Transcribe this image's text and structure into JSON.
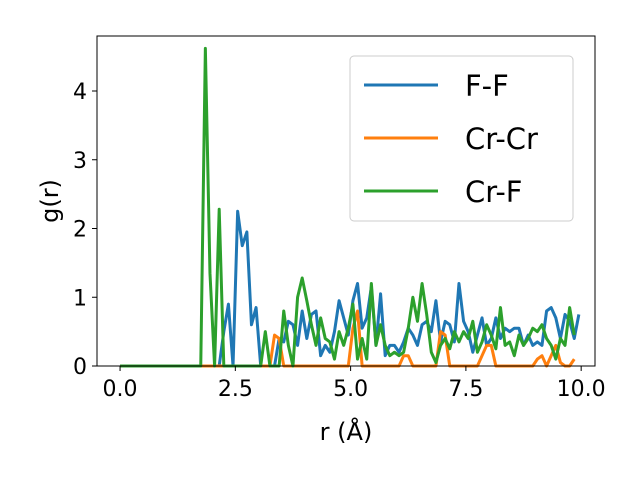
{
  "chart_data": {
    "type": "line",
    "xlabel": "r (Å)",
    "ylabel": "g(r)",
    "xlim": [
      -0.5,
      10.3
    ],
    "ylim": [
      0,
      4.8
    ],
    "x_ticks": [
      0.0,
      2.5,
      5.0,
      7.5,
      10.0
    ],
    "x_tick_labels": [
      "0.0",
      "2.5",
      "5.0",
      "7.5",
      "10.0"
    ],
    "y_ticks": [
      0,
      1,
      2,
      3,
      4
    ],
    "y_tick_labels": [
      "0",
      "1",
      "2",
      "3",
      "4"
    ],
    "grid": false,
    "legend_position": "top-right",
    "series": [
      {
        "name": "F-F",
        "color": "#1f77b4",
        "points": [
          [
            0,
            0
          ],
          [
            2.15,
            0
          ],
          [
            2.25,
            0.5
          ],
          [
            2.35,
            0.9
          ],
          [
            2.45,
            0
          ],
          [
            2.55,
            2.25
          ],
          [
            2.65,
            1.75
          ],
          [
            2.75,
            1.95
          ],
          [
            2.85,
            0.6
          ],
          [
            2.95,
            0.85
          ],
          [
            3.05,
            0
          ],
          [
            3.35,
            0
          ],
          [
            3.45,
            0.4
          ],
          [
            3.55,
            0.35
          ],
          [
            3.65,
            0.65
          ],
          [
            3.75,
            0.6
          ],
          [
            3.85,
            0.3
          ],
          [
            3.95,
            0.8
          ],
          [
            4.05,
            0.4
          ],
          [
            4.15,
            0.75
          ],
          [
            4.25,
            0.8
          ],
          [
            4.35,
            0.15
          ],
          [
            4.45,
            0.3
          ],
          [
            4.55,
            0.2
          ],
          [
            4.65,
            0.5
          ],
          [
            4.75,
            0.95
          ],
          [
            4.85,
            0.7
          ],
          [
            4.95,
            0.45
          ],
          [
            5.05,
            0.95
          ],
          [
            5.15,
            1.2
          ],
          [
            5.25,
            0.55
          ],
          [
            5.35,
            0.7
          ],
          [
            5.45,
            1.15
          ],
          [
            5.55,
            0.3
          ],
          [
            5.65,
            1.05
          ],
          [
            5.75,
            0.15
          ],
          [
            5.85,
            0.3
          ],
          [
            5.95,
            0.3
          ],
          [
            6.05,
            0.2
          ],
          [
            6.15,
            0.35
          ],
          [
            6.25,
            0.55
          ],
          [
            6.35,
            0.45
          ],
          [
            6.45,
            0.3
          ],
          [
            6.55,
            0.6
          ],
          [
            6.65,
            0.65
          ],
          [
            6.75,
            0.5
          ],
          [
            6.85,
            0.95
          ],
          [
            6.95,
            0.35
          ],
          [
            7.05,
            0.65
          ],
          [
            7.15,
            0.6
          ],
          [
            7.25,
            0.35
          ],
          [
            7.35,
            1.2
          ],
          [
            7.45,
            0.65
          ],
          [
            7.55,
            0.5
          ],
          [
            7.65,
            0.2
          ],
          [
            7.75,
            0.45
          ],
          [
            7.85,
            0.7
          ],
          [
            7.95,
            0.3
          ],
          [
            8.05,
            0.4
          ],
          [
            8.15,
            0.7
          ],
          [
            8.25,
            0.4
          ],
          [
            8.35,
            0.55
          ],
          [
            8.45,
            0.5
          ],
          [
            8.55,
            0.55
          ],
          [
            8.65,
            0.55
          ],
          [
            8.75,
            0.3
          ],
          [
            8.85,
            0.45
          ],
          [
            8.95,
            0.3
          ],
          [
            9.05,
            0.35
          ],
          [
            9.15,
            0.3
          ],
          [
            9.25,
            0.8
          ],
          [
            9.35,
            0.85
          ],
          [
            9.45,
            0.7
          ],
          [
            9.55,
            0.4
          ],
          [
            9.65,
            0.75
          ],
          [
            9.75,
            0.65
          ],
          [
            9.85,
            0.4
          ],
          [
            9.95,
            0.75
          ]
        ]
      },
      {
        "name": "Cr-Cr",
        "color": "#ff7f0e",
        "points": [
          [
            0,
            0
          ],
          [
            3.25,
            0
          ],
          [
            3.35,
            0.45
          ],
          [
            3.45,
            0.4
          ],
          [
            3.55,
            0
          ],
          [
            4.95,
            0
          ],
          [
            5.05,
            0.55
          ],
          [
            5.15,
            0.8
          ],
          [
            5.25,
            0
          ],
          [
            6.05,
            0
          ],
          [
            6.15,
            0.15
          ],
          [
            6.25,
            0.15
          ],
          [
            6.35,
            0
          ],
          [
            6.85,
            0
          ],
          [
            6.95,
            0.5
          ],
          [
            7.05,
            0.45
          ],
          [
            7.15,
            0
          ],
          [
            7.75,
            0
          ],
          [
            7.85,
            0.15
          ],
          [
            7.95,
            0.3
          ],
          [
            8.05,
            0.3
          ],
          [
            8.15,
            0
          ],
          [
            8.95,
            0
          ],
          [
            9.05,
            0.1
          ],
          [
            9.15,
            0.15
          ],
          [
            9.25,
            0
          ],
          [
            9.45,
            0.3
          ],
          [
            9.55,
            0.05
          ],
          [
            9.65,
            0
          ],
          [
            9.75,
            0
          ],
          [
            9.85,
            0.1
          ]
        ]
      },
      {
        "name": "Cr-F",
        "color": "#2ca02c",
        "points": [
          [
            0,
            0
          ],
          [
            1.75,
            0
          ],
          [
            1.85,
            4.62
          ],
          [
            1.95,
            1.35
          ],
          [
            2.05,
            0
          ],
          [
            2.15,
            2.28
          ],
          [
            2.25,
            0
          ],
          [
            2.35,
            0
          ],
          [
            3.05,
            0
          ],
          [
            3.15,
            0.5
          ],
          [
            3.25,
            0
          ],
          [
            3.45,
            0
          ],
          [
            3.55,
            0.8
          ],
          [
            3.65,
            0.3
          ],
          [
            3.75,
            0
          ],
          [
            3.85,
            1.0
          ],
          [
            3.95,
            1.28
          ],
          [
            4.05,
            0.95
          ],
          [
            4.15,
            0.6
          ],
          [
            4.25,
            0.3
          ],
          [
            4.35,
            0.7
          ],
          [
            4.45,
            0.4
          ],
          [
            4.55,
            0.35
          ],
          [
            4.65,
            0.1
          ],
          [
            4.75,
            0.5
          ],
          [
            4.85,
            0.3
          ],
          [
            4.95,
            0.55
          ],
          [
            5.05,
            0.9
          ],
          [
            5.15,
            0.1
          ],
          [
            5.25,
            0.4
          ],
          [
            5.35,
            0.1
          ],
          [
            5.45,
            1.2
          ],
          [
            5.55,
            0.3
          ],
          [
            5.65,
            0.6
          ],
          [
            5.75,
            0.3
          ],
          [
            5.85,
            0.15
          ],
          [
            5.95,
            0.2
          ],
          [
            6.05,
            0.15
          ],
          [
            6.15,
            0.2
          ],
          [
            6.25,
            0.55
          ],
          [
            6.35,
            1.0
          ],
          [
            6.45,
            0.65
          ],
          [
            6.55,
            1.2
          ],
          [
            6.65,
            0.75
          ],
          [
            6.75,
            0.2
          ],
          [
            6.85,
            0.05
          ],
          [
            6.95,
            0.3
          ],
          [
            7.05,
            0.4
          ],
          [
            7.15,
            0.25
          ],
          [
            7.25,
            0.5
          ],
          [
            7.35,
            0.35
          ],
          [
            7.45,
            0.5
          ],
          [
            7.55,
            0.4
          ],
          [
            7.65,
            0.65
          ],
          [
            7.75,
            0.2
          ],
          [
            7.85,
            0.35
          ],
          [
            7.95,
            0.6
          ],
          [
            8.05,
            0.45
          ],
          [
            8.15,
            0.25
          ],
          [
            8.25,
            0.85
          ],
          [
            8.35,
            0.3
          ],
          [
            8.45,
            0.35
          ],
          [
            8.55,
            0.15
          ],
          [
            8.65,
            0.45
          ],
          [
            8.75,
            0.3
          ],
          [
            8.85,
            0.4
          ],
          [
            8.95,
            0.55
          ],
          [
            9.05,
            0.5
          ],
          [
            9.15,
            0.6
          ],
          [
            9.25,
            0.4
          ],
          [
            9.35,
            0.3
          ],
          [
            9.45,
            0.1
          ],
          [
            9.55,
            0.4
          ],
          [
            9.65,
            0.3
          ],
          [
            9.75,
            0.85
          ],
          [
            9.85,
            0.45
          ]
        ]
      }
    ]
  }
}
